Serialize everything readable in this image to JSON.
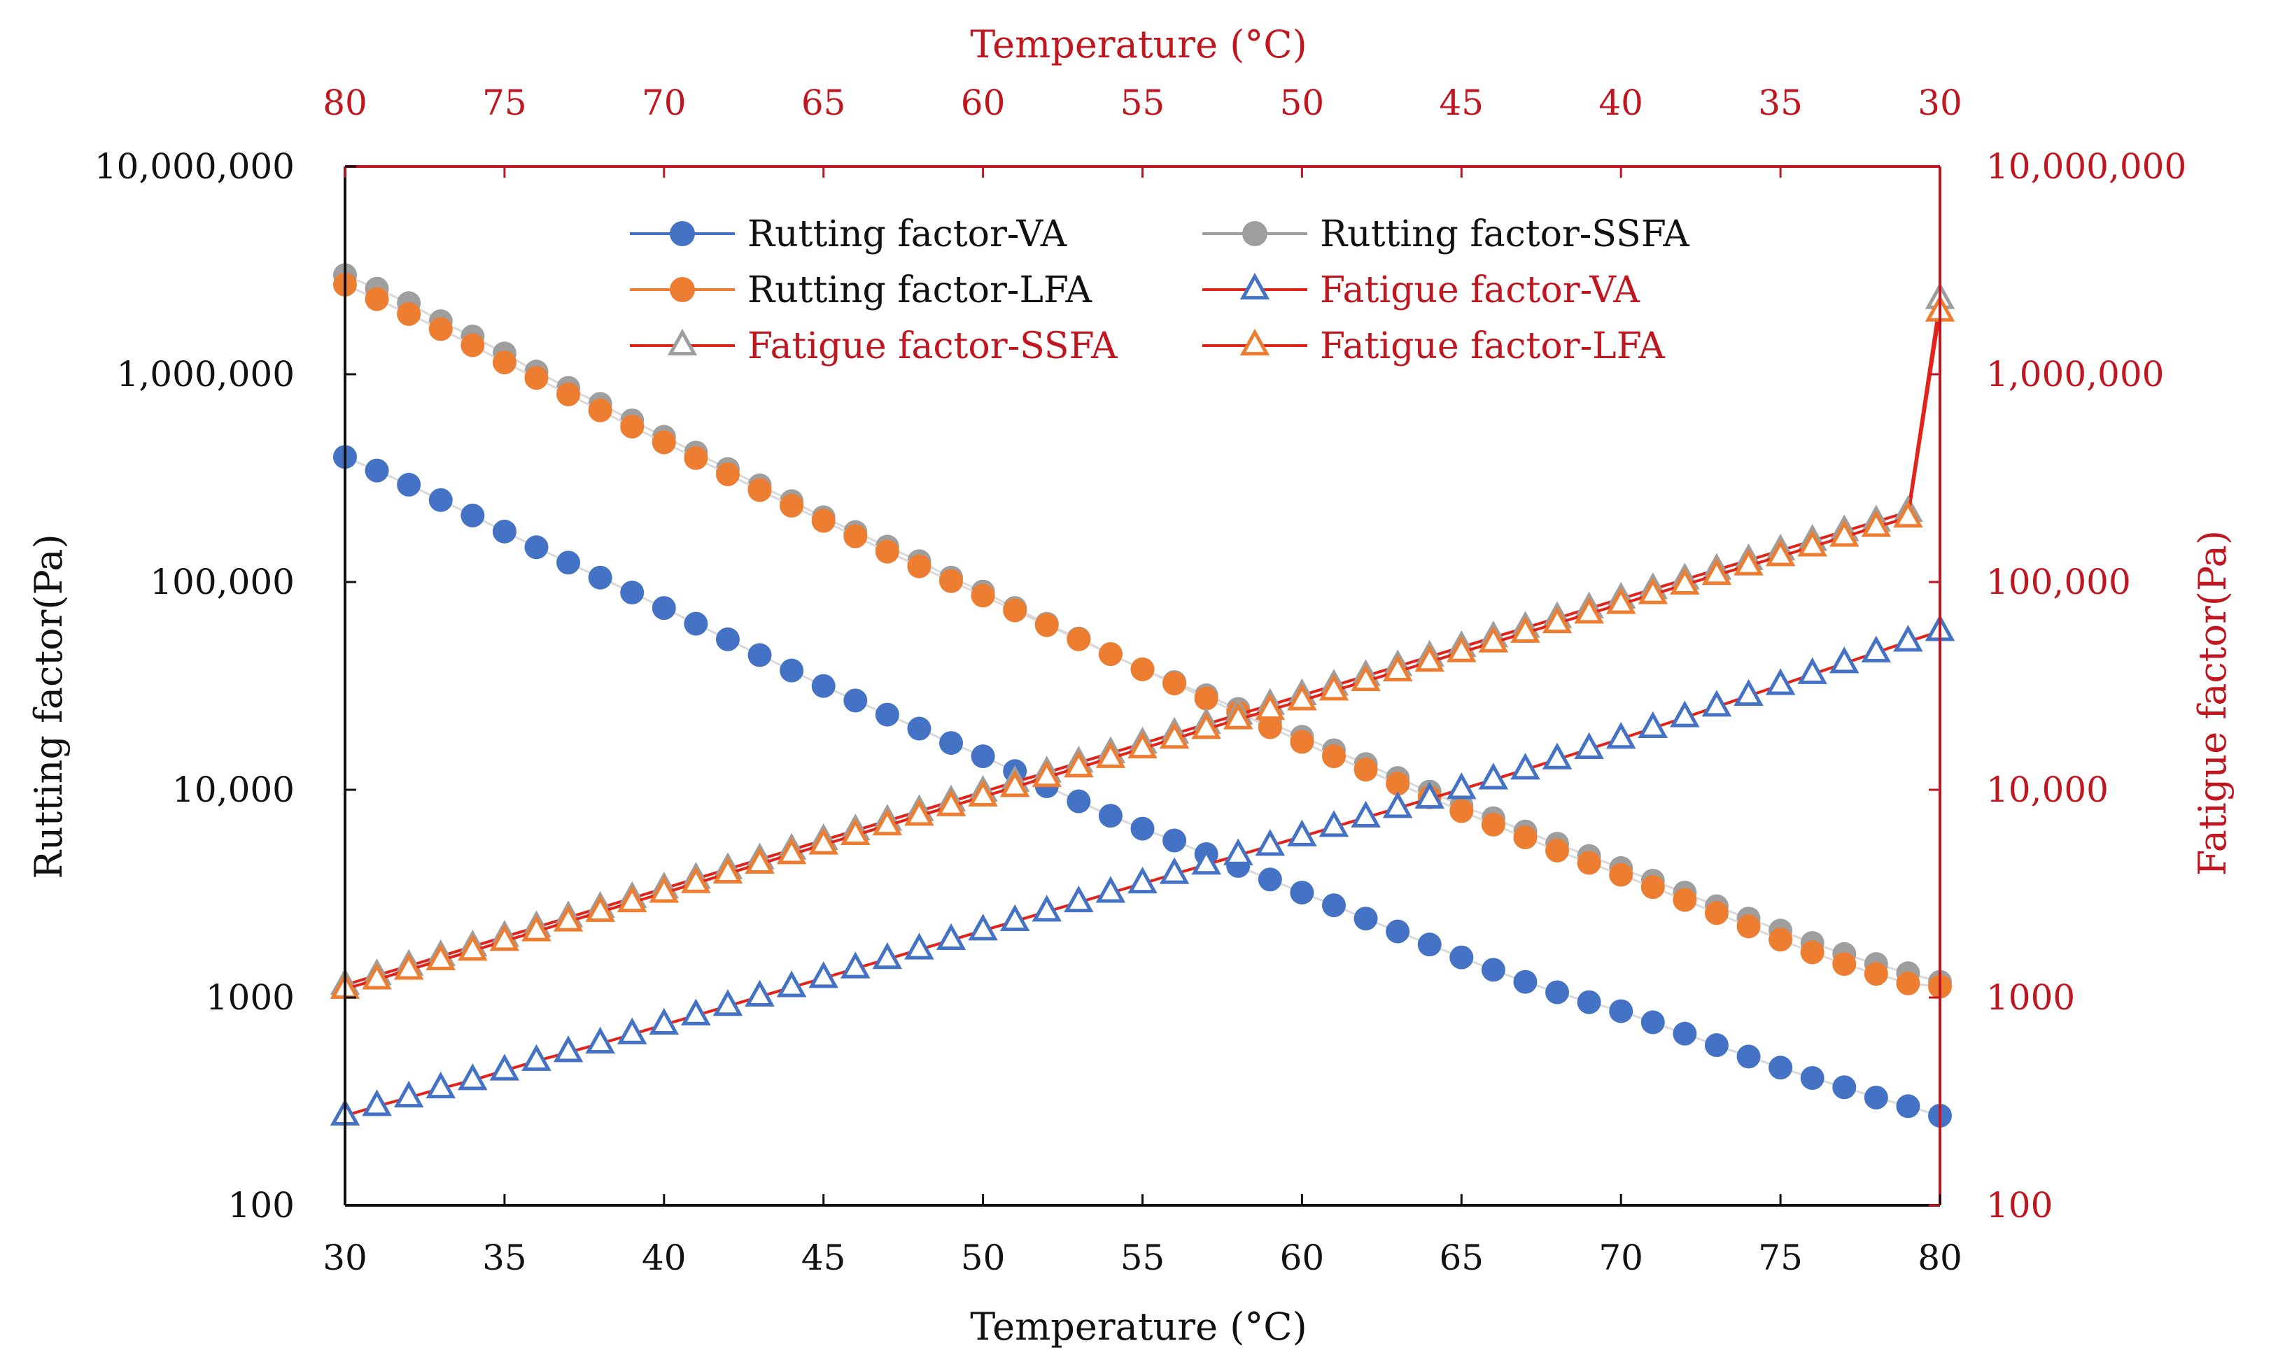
{
  "chart_data": {
    "type": "line",
    "x_bottom": {
      "label": "Temperature (°C)",
      "range": [
        30,
        80
      ],
      "ticks": [
        "30",
        "35",
        "40",
        "45",
        "50",
        "55",
        "60",
        "65",
        "70",
        "75",
        "80"
      ]
    },
    "x_top": {
      "label": "Temperature (°C)",
      "range": [
        80,
        30
      ],
      "reversed": true,
      "ticks": [
        "80",
        "75",
        "70",
        "65",
        "60",
        "55",
        "50",
        "45",
        "40",
        "35",
        "30"
      ]
    },
    "y_left": {
      "label": "Rutting factor(Pa)",
      "scale": "log",
      "range": [
        100,
        10000000
      ],
      "ticks": [
        "100",
        "1000",
        "10,000",
        "100,000",
        "1,000,000",
        "10,000,000"
      ]
    },
    "y_right": {
      "label": "Fatigue factor(Pa)",
      "scale": "log",
      "range": [
        100,
        10000000
      ],
      "ticks": [
        "100",
        "1000",
        "10,000",
        "100,000",
        "1,000,000",
        "10,000,000"
      ]
    },
    "legend": {
      "placement": "top-center",
      "entries": [
        {
          "label": "Rutting factor-VA",
          "color": "#4472c4"
        },
        {
          "label": "Rutting factor-SSFA",
          "color": "#9e9e9e"
        },
        {
          "label": "Rutting factor-LFA",
          "color": "#ed7d31"
        },
        {
          "label": "Fatigue  factor-VA",
          "color": "#4472c4"
        },
        {
          "label": "Fatigue  factor-SSFA",
          "color": "#9e9e9e"
        },
        {
          "label": "Fatigue  factor-LFA",
          "color": "#ed7d31"
        }
      ]
    },
    "colors": {
      "fatigue_line": "#e2231a",
      "rutting_line": "#d9d9d9",
      "right_axis": "#c0161f",
      "VA": "#4472c4",
      "SSFA": "#9e9e9e",
      "LFA": "#ed7d31"
    },
    "x": [
      30,
      31,
      32,
      33,
      34,
      35,
      36,
      37,
      38,
      39,
      40,
      41,
      42,
      43,
      44,
      45,
      46,
      47,
      48,
      49,
      50,
      51,
      52,
      53,
      54,
      55,
      56,
      57,
      58,
      59,
      60,
      61,
      62,
      63,
      64,
      65,
      66,
      67,
      68,
      69,
      70,
      71,
      72,
      73,
      74,
      75,
      76,
      77,
      78,
      79,
      80
    ],
    "series": [
      {
        "name": "Rutting factor-VA",
        "axis": "left",
        "marker": "circle",
        "color": "#4472c4",
        "values": [
          400000,
          344000,
          294000,
          248000,
          209000,
          175000,
          147000,
          124000,
          105000,
          89000,
          75000,
          63000,
          53000,
          44500,
          37500,
          31600,
          26900,
          23000,
          19700,
          16800,
          14500,
          12300,
          10400,
          8800,
          7500,
          6500,
          5700,
          4900,
          4300,
          3700,
          3200,
          2780,
          2400,
          2080,
          1800,
          1560,
          1360,
          1190,
          1060,
          950,
          860,
          760,
          670,
          590,
          520,
          460,
          410,
          370,
          330,
          300,
          270
        ]
      },
      {
        "name": "Rutting factor-SSFA",
        "axis": "left",
        "marker": "circle",
        "color": "#9e9e9e",
        "values": [
          3000000,
          2580000,
          2200000,
          1800000,
          1520000,
          1260000,
          1030000,
          860000,
          720000,
          600000,
          500000,
          420000,
          350000,
          292000,
          245000,
          205000,
          174000,
          148000,
          126000,
          105000,
          90000,
          75000,
          63000,
          53500,
          45000,
          38000,
          33000,
          28500,
          24500,
          21000,
          18000,
          15500,
          13300,
          11400,
          9800,
          8400,
          7300,
          6300,
          5500,
          4800,
          4200,
          3650,
          3200,
          2750,
          2400,
          2100,
          1830,
          1620,
          1450,
          1310,
          1190
        ]
      },
      {
        "name": "Rutting factor-LFA",
        "axis": "left",
        "marker": "circle",
        "color": "#ed7d31",
        "values": [
          2700000,
          2300000,
          1950000,
          1650000,
          1380000,
          1140000,
          960000,
          800000,
          670000,
          560000,
          470000,
          395000,
          330000,
          277000,
          233000,
          197000,
          166000,
          140000,
          119000,
          101000,
          86000,
          73000,
          62000,
          53000,
          45000,
          38000,
          32500,
          27500,
          23500,
          20000,
          17000,
          14500,
          12500,
          10700,
          9200,
          7900,
          6800,
          5900,
          5100,
          4450,
          3900,
          3400,
          2950,
          2550,
          2200,
          1900,
          1650,
          1450,
          1300,
          1170,
          1130
        ]
      },
      {
        "name": "Fatigue  factor-VA",
        "axis": "right",
        "marker": "triangle",
        "color": "#4472c4",
        "values": [
          270,
          300,
          330,
          365,
          400,
          445,
          495,
          545,
          600,
          665,
          740,
          820,
          910,
          1010,
          1120,
          1240,
          1380,
          1530,
          1700,
          1890,
          2100,
          2330,
          2590,
          2870,
          3190,
          3540,
          3930,
          4360,
          4840,
          5370,
          5960,
          6620,
          7350,
          8160,
          9060,
          10060,
          11200,
          12500,
          14000,
          15700,
          17600,
          19800,
          22300,
          25100,
          28300,
          31900,
          36000,
          40600,
          45800,
          51600,
          58000
        ]
      },
      {
        "name": "Fatigue  factor-SSFA",
        "axis": "right",
        "marker": "triangle",
        "color": "#9e9e9e",
        "values": [
          1150,
          1280,
          1420,
          1580,
          1760,
          1960,
          2180,
          2430,
          2700,
          3010,
          3350,
          3730,
          4150,
          4620,
          5140,
          5720,
          6370,
          7090,
          7890,
          8780,
          9770,
          10900,
          12100,
          13500,
          15000,
          16700,
          18600,
          20700,
          23000,
          25600,
          28500,
          31700,
          35300,
          39300,
          43700,
          48600,
          54100,
          60200,
          67000,
          74600,
          83000,
          92400,
          102800,
          114400,
          127300,
          141700,
          157700,
          175500,
          195300,
          217400,
          2300000
        ]
      },
      {
        "name": "Fatigue  factor-LFA",
        "axis": "right",
        "marker": "triangle",
        "color": "#ed7d31",
        "values": [
          1100,
          1220,
          1360,
          1510,
          1680,
          1870,
          2080,
          2320,
          2580,
          2870,
          3190,
          3550,
          3950,
          4400,
          4890,
          5440,
          6050,
          6730,
          7490,
          8330,
          9270,
          10300,
          11500,
          12800,
          14200,
          15800,
          17600,
          19600,
          21800,
          24200,
          26900,
          30000,
          33300,
          37100,
          41300,
          45900,
          51100,
          56900,
          63300,
          70400,
          78300,
          87200,
          97000,
          108000,
          120000,
          133000,
          148000,
          165000,
          184000,
          204000,
          2000000
        ]
      }
    ]
  }
}
